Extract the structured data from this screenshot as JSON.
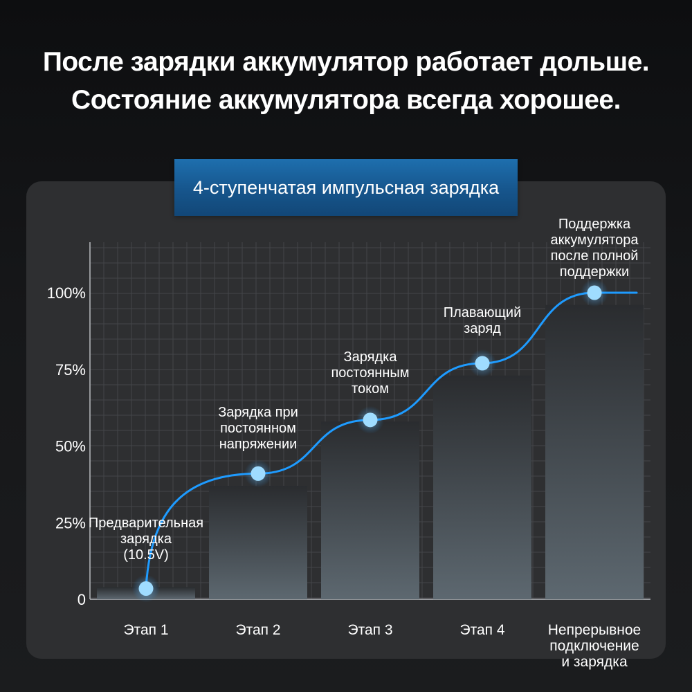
{
  "headline": {
    "line1": "После зарядки аккумулятор работает дольше.",
    "line2": "Состояние аккумулятора всегда хорошее."
  },
  "banner": {
    "title": "4-ступенчатая импульсная зарядка"
  },
  "colors": {
    "curve": "#1e9bff",
    "point": "#9fdcff",
    "bar_top": "#2a2c2f",
    "bar_bottom": "#5d6870",
    "panel": "#2e2f31",
    "banner": "#1a62a0"
  },
  "chart_data": {
    "type": "bar",
    "title": "4-ступенчатая импульсная зарядка",
    "categories": [
      [
        "Этап 1"
      ],
      [
        "Этап 2"
      ],
      [
        "Этап 3"
      ],
      [
        "Этап 4"
      ],
      [
        "Непрерывное",
        "подключение",
        "и зарядка"
      ]
    ],
    "values": [
      4,
      37,
      58,
      73,
      96
    ],
    "point_values": [
      3.5,
      41,
      58.5,
      77,
      100
    ],
    "point_labels": [
      [
        "Предварительная",
        "зарядка",
        "(10.5V)"
      ],
      [
        "Зарядка при",
        "постоянном",
        "напряжении"
      ],
      [
        "Зарядка",
        "постоянным",
        "током"
      ],
      [
        "Плавающий",
        "заряд"
      ],
      [
        "Поддержка",
        "аккумулятора",
        "после полной",
        "поддержки"
      ]
    ],
    "yticks": [
      "0",
      "25%",
      "50%",
      "75%",
      "100%"
    ],
    "ytick_values": [
      0,
      25,
      50,
      75,
      100
    ],
    "ylim": [
      0,
      115
    ],
    "xlabel": "",
    "ylabel": "",
    "grid": true
  }
}
